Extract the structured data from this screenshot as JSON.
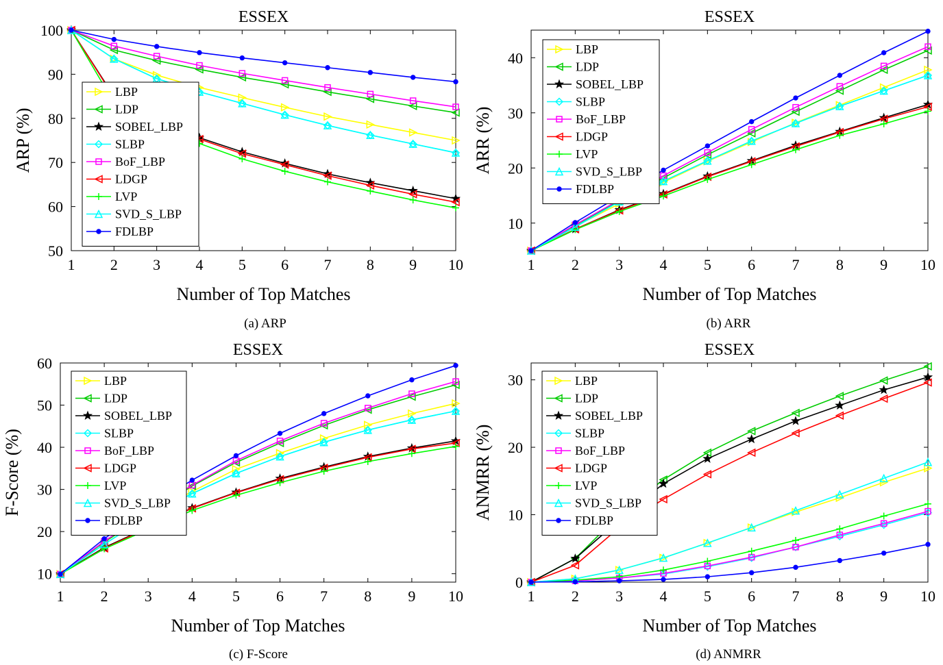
{
  "chart_data": [
    {
      "type": "line",
      "title": "ESSEX",
      "xlabel": "Number of Top Matches",
      "ylabel": "ARP (%)",
      "caption": "(a) ARP",
      "x": [
        1,
        2,
        3,
        4,
        5,
        6,
        7,
        8,
        9,
        10
      ],
      "xticks": [
        "1",
        "2",
        "3",
        "4",
        "5",
        "6",
        "7",
        "8",
        "9",
        "10"
      ],
      "ylim": [
        50,
        100
      ],
      "yticks": [
        50,
        60,
        70,
        80,
        90,
        100
      ],
      "legend": "upper-left",
      "series": [
        {
          "name": "LBP",
          "color": "#FFFF00",
          "marker": "tri-right",
          "values": [
            100,
            93.5,
            89.8,
            87.0,
            84.7,
            82.5,
            80.4,
            78.6,
            76.8,
            75.0
          ]
        },
        {
          "name": "LDP",
          "color": "#00CC00",
          "marker": "tri-left",
          "values": [
            100,
            95.5,
            93.1,
            91.1,
            89.3,
            87.7,
            86.0,
            84.4,
            82.8,
            81.3
          ]
        },
        {
          "name": "SOBEL_LBP",
          "color": "#000000",
          "marker": "star",
          "values": [
            100,
            85.0,
            79.8,
            75.6,
            72.4,
            69.8,
            67.4,
            65.4,
            63.6,
            61.8
          ]
        },
        {
          "name": "SLBP",
          "color": "#00FFFF",
          "marker": "diamond",
          "values": [
            100,
            93.5,
            89.0,
            86.0,
            83.4,
            80.8,
            78.4,
            76.2,
            74.2,
            72.2
          ]
        },
        {
          "name": "BoF_LBP",
          "color": "#FF00FF",
          "marker": "square",
          "values": [
            100,
            96.4,
            94.1,
            92.0,
            90.2,
            88.6,
            87.0,
            85.5,
            84.0,
            82.6
          ]
        },
        {
          "name": "LDGP",
          "color": "#FF0000",
          "marker": "tri-left",
          "values": [
            100,
            84.8,
            79.5,
            75.3,
            72.0,
            69.5,
            67.0,
            64.8,
            62.8,
            61.0
          ]
        },
        {
          "name": "LVP",
          "color": "#00FF00",
          "marker": "plus",
          "values": [
            100,
            83.5,
            78.4,
            74.3,
            70.8,
            68.0,
            65.6,
            63.5,
            61.5,
            59.7
          ]
        },
        {
          "name": "SVD_S_LBP",
          "color": "#00FFFF",
          "marker": "triangle",
          "values": [
            100,
            93.5,
            89.0,
            86.0,
            83.4,
            80.8,
            78.4,
            76.2,
            74.2,
            72.2
          ]
        },
        {
          "name": "FDLBP",
          "color": "#0000FF",
          "marker": "dot",
          "values": [
            100,
            97.9,
            96.3,
            94.9,
            93.7,
            92.6,
            91.5,
            90.4,
            89.3,
            88.3
          ]
        }
      ]
    },
    {
      "type": "line",
      "title": "ESSEX",
      "xlabel": "Number of Top Matches",
      "ylabel": "ARR (%)",
      "caption": "(b) ARR",
      "x": [
        1,
        2,
        3,
        4,
        5,
        6,
        7,
        8,
        9,
        10
      ],
      "xticks": [
        "1",
        "2",
        "3",
        "4",
        "5",
        "6",
        "7",
        "8",
        "9",
        "10"
      ],
      "ylim": [
        5,
        45
      ],
      "yticks": [
        10,
        20,
        30,
        40
      ],
      "legend": "upper-left",
      "series": [
        {
          "name": "LBP",
          "color": "#FFFF00",
          "marker": "tri-right",
          "values": [
            5,
            9.4,
            13.5,
            17.4,
            21.2,
            24.7,
            28.2,
            31.4,
            34.6,
            37.8
          ]
        },
        {
          "name": "LDP",
          "color": "#00CC00",
          "marker": "tri-left",
          "values": [
            5,
            9.6,
            14.0,
            18.2,
            22.4,
            26.3,
            30.2,
            34.0,
            37.8,
            41.3
          ]
        },
        {
          "name": "SOBEL_LBP",
          "color": "#000000",
          "marker": "star",
          "values": [
            5,
            8.9,
            12.4,
            15.3,
            18.5,
            21.3,
            24.1,
            26.6,
            29.1,
            31.5
          ]
        },
        {
          "name": "SLBP",
          "color": "#00FFFF",
          "marker": "diamond",
          "values": [
            5,
            9.3,
            13.9,
            17.6,
            21.3,
            24.9,
            28.1,
            31.2,
            34.0,
            36.8
          ]
        },
        {
          "name": "BoF_LBP",
          "color": "#FF00FF",
          "marker": "square",
          "values": [
            5,
            9.7,
            14.2,
            18.6,
            22.8,
            27.0,
            31.0,
            34.8,
            38.5,
            42.0
          ]
        },
        {
          "name": "LDGP",
          "color": "#FF0000",
          "marker": "tri-left",
          "values": [
            5,
            8.9,
            12.3,
            15.2,
            18.4,
            21.2,
            23.9,
            26.5,
            28.9,
            31.1
          ]
        },
        {
          "name": "LVP",
          "color": "#00FF00",
          "marker": "plus",
          "values": [
            5,
            8.8,
            12.1,
            14.9,
            17.9,
            20.6,
            23.3,
            25.9,
            28.0,
            30.3
          ]
        },
        {
          "name": "SVD_S_LBP",
          "color": "#00FFFF",
          "marker": "triangle",
          "values": [
            5,
            9.3,
            13.9,
            17.6,
            21.3,
            24.9,
            28.1,
            31.2,
            34.0,
            36.8
          ]
        },
        {
          "name": "FDLBP",
          "color": "#0000FF",
          "marker": "dot",
          "values": [
            5,
            10.1,
            14.9,
            19.6,
            24.0,
            28.4,
            32.7,
            36.8,
            40.9,
            44.8
          ]
        }
      ]
    },
    {
      "type": "line",
      "title": "ESSEX",
      "xlabel": "Number of Top Matches",
      "ylabel": "F-Score (%)",
      "caption": "(c) F-Score",
      "x": [
        1,
        2,
        3,
        4,
        5,
        6,
        7,
        8,
        9,
        10
      ],
      "xticks": [
        "1",
        "2",
        "3",
        "4",
        "5",
        "6",
        "7",
        "8",
        "9",
        "10"
      ],
      "ylim": [
        8,
        60
      ],
      "yticks": [
        10,
        20,
        30,
        40,
        50,
        60
      ],
      "legend": "upper-left",
      "series": [
        {
          "name": "LBP",
          "color": "#FFFF00",
          "marker": "tri-right",
          "values": [
            9.9,
            17.0,
            23.9,
            29.5,
            34.8,
            38.6,
            42.1,
            45.3,
            48.0,
            50.4
          ]
        },
        {
          "name": "LDP",
          "color": "#00CC00",
          "marker": "tri-left",
          "values": [
            9.9,
            17.5,
            24.2,
            30.8,
            36.4,
            41.0,
            45.2,
            48.9,
            52.0,
            54.8
          ]
        },
        {
          "name": "SOBEL_LBP",
          "color": "#000000",
          "marker": "star",
          "values": [
            9.9,
            16.2,
            21.0,
            25.6,
            29.3,
            32.6,
            35.3,
            37.8,
            39.8,
            41.5
          ]
        },
        {
          "name": "SLBP",
          "color": "#00FFFF",
          "marker": "diamond",
          "values": [
            9.9,
            17.0,
            23.6,
            29.0,
            33.8,
            37.8,
            41.2,
            44.1,
            46.5,
            48.6
          ]
        },
        {
          "name": "BoF_LBP",
          "color": "#FF00FF",
          "marker": "square",
          "values": [
            9.9,
            17.7,
            24.6,
            31.0,
            36.8,
            41.5,
            45.7,
            49.3,
            52.7,
            55.6
          ]
        },
        {
          "name": "LDGP",
          "color": "#FF0000",
          "marker": "tri-left",
          "values": [
            9.9,
            16.0,
            20.9,
            25.5,
            29.2,
            32.4,
            35.1,
            37.6,
            39.6,
            41.0
          ]
        },
        {
          "name": "LVP",
          "color": "#00FF00",
          "marker": "plus",
          "values": [
            9.9,
            15.9,
            20.5,
            25.0,
            28.6,
            31.6,
            34.3,
            36.6,
            38.5,
            40.2
          ]
        },
        {
          "name": "SVD_S_LBP",
          "color": "#00FFFF",
          "marker": "triangle",
          "values": [
            9.9,
            17.0,
            23.6,
            29.0,
            33.8,
            37.8,
            41.2,
            44.1,
            46.5,
            48.6
          ]
        },
        {
          "name": "FDLBP",
          "color": "#0000FF",
          "marker": "dot",
          "values": [
            9.9,
            18.3,
            25.7,
            32.2,
            38.0,
            43.3,
            48.0,
            52.2,
            56.0,
            59.4
          ]
        }
      ]
    },
    {
      "type": "line",
      "title": "ESSEX",
      "xlabel": "Number of Top Matches",
      "ylabel": "ANMRR (%)",
      "caption": "(d) ANMRR",
      "x": [
        1,
        2,
        3,
        4,
        5,
        6,
        7,
        8,
        9,
        10
      ],
      "xticks": [
        "1",
        "2",
        "3",
        "4",
        "5",
        "6",
        "7",
        "8",
        "9",
        "10"
      ],
      "ylim": [
        0,
        32.5
      ],
      "yticks": [
        0,
        10,
        20,
        30
      ],
      "legend": "upper-left",
      "series": [
        {
          "name": "LBP",
          "color": "#FFFF00",
          "marker": "tri-right",
          "values": [
            0,
            0.5,
            1.8,
            3.6,
            5.8,
            8.1,
            10.4,
            12.5,
            14.8,
            16.9
          ]
        },
        {
          "name": "LDP",
          "color": "#00CC00",
          "marker": "tri-left",
          "values": [
            0,
            3.5,
            10.0,
            15.2,
            19.2,
            22.4,
            25.1,
            27.6,
            29.9,
            32.0
          ]
        },
        {
          "name": "SOBEL_LBP",
          "color": "#000000",
          "marker": "star",
          "values": [
            0,
            3.5,
            9.2,
            14.6,
            18.3,
            21.2,
            23.9,
            26.2,
            28.5,
            30.4
          ]
        },
        {
          "name": "SLBP",
          "color": "#00FFFF",
          "marker": "diamond",
          "values": [
            0,
            0.2,
            0.6,
            1.2,
            2.3,
            3.6,
            5.2,
            6.8,
            8.5,
            10.3
          ]
        },
        {
          "name": "BoF_LBP",
          "color": "#FF00FF",
          "marker": "square",
          "values": [
            0,
            0.2,
            0.6,
            1.3,
            2.4,
            3.7,
            5.2,
            7.0,
            8.7,
            10.5
          ]
        },
        {
          "name": "LDGP",
          "color": "#FF0000",
          "marker": "tri-left",
          "values": [
            0,
            2.5,
            8.1,
            12.3,
            16.0,
            19.2,
            22.1,
            24.7,
            27.2,
            29.6
          ]
        },
        {
          "name": "LVP",
          "color": "#00FF00",
          "marker": "plus",
          "values": [
            0,
            0.3,
            0.8,
            1.8,
            3.1,
            4.6,
            6.2,
            7.9,
            9.8,
            11.6
          ]
        },
        {
          "name": "SVD_S_LBP",
          "color": "#00FFFF",
          "marker": "triangle",
          "values": [
            0,
            0.5,
            1.8,
            3.6,
            5.8,
            8.1,
            10.6,
            13.0,
            15.4,
            17.8
          ]
        },
        {
          "name": "FDLBP",
          "color": "#0000FF",
          "marker": "dot",
          "values": [
            0,
            0.05,
            0.2,
            0.4,
            0.8,
            1.4,
            2.2,
            3.2,
            4.3,
            5.6
          ]
        }
      ]
    }
  ]
}
